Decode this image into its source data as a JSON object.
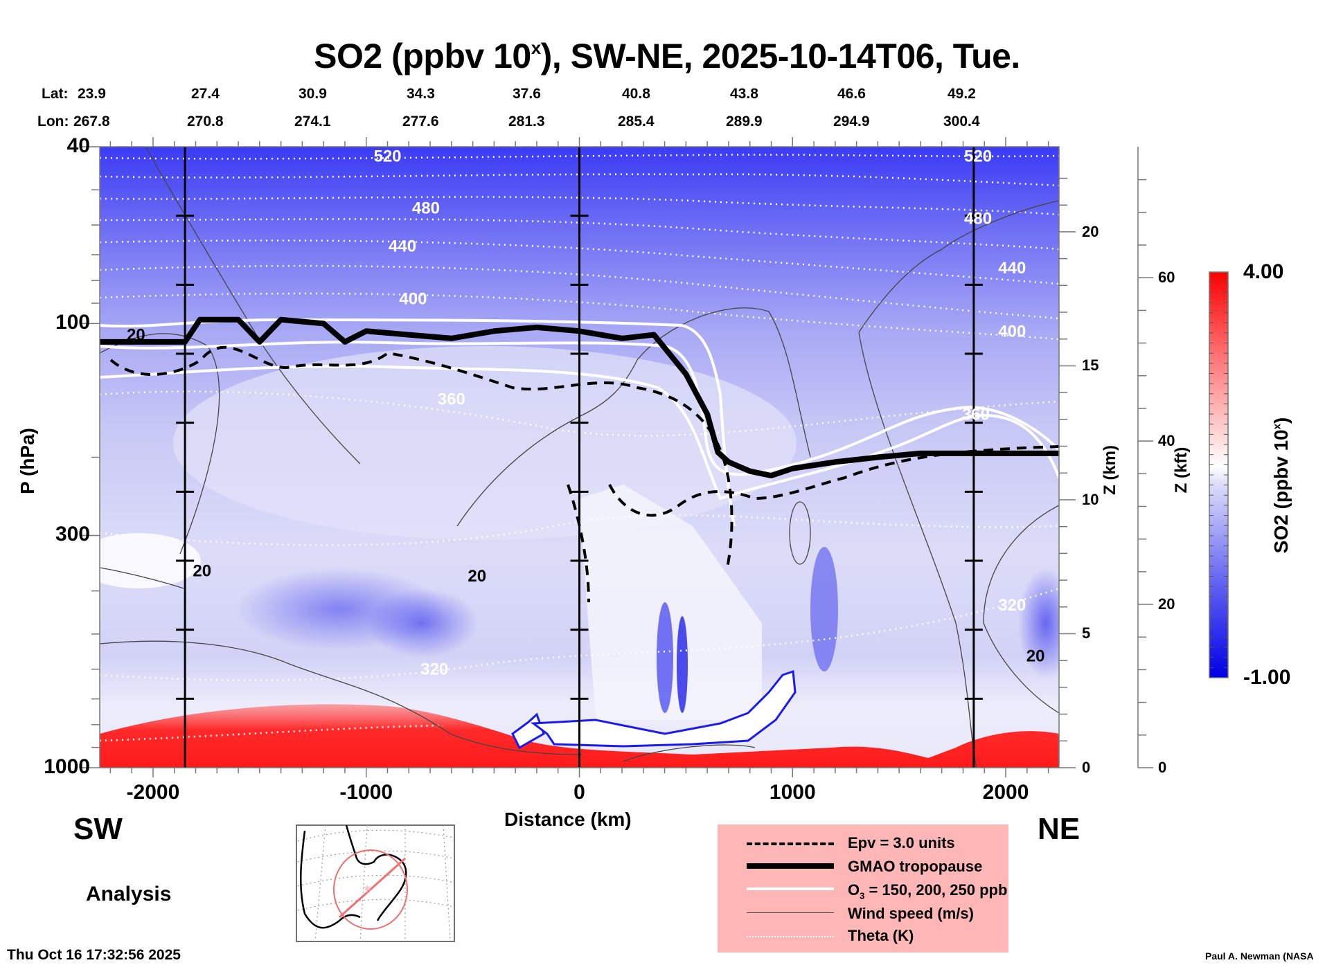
{
  "chart_data": {
    "type": "heatmap",
    "title_main": "SO2 (ppbv 10",
    "title_sup": "x",
    "title_rest": "), SW-NE, 2025-10-14T06, Tue.",
    "xlabel": "Distance (km)",
    "ylabel": "P (hPa)",
    "x_range": [
      -2250,
      2250
    ],
    "x_ticks": [
      -2000,
      -1000,
      0,
      1000,
      2000
    ],
    "y_scale": "log",
    "y_range_hpa": [
      1000,
      40
    ],
    "y_ticks": [
      40,
      100,
      300,
      1000
    ],
    "z_km_label": "Z (km)",
    "z_km_ticks": [
      0,
      5,
      10,
      15,
      20
    ],
    "z_kft_label": "Z (kft)",
    "z_kft_ticks": [
      0,
      20,
      40,
      60
    ],
    "lat_label": "Lat:",
    "lon_label": "Lon:",
    "lat": [
      "23.9",
      "27.4",
      "30.9",
      "34.3",
      "37.6",
      "40.8",
      "43.8",
      "46.6",
      "49.2"
    ],
    "lon": [
      "267.8",
      "270.8",
      "274.1",
      "277.6",
      "281.3",
      "285.4",
      "289.9",
      "294.9",
      "300.4"
    ],
    "vertical_marker_lines_km": [
      -1850,
      0,
      1850
    ],
    "colorbar": {
      "label_main": "SO2 (ppbv 10",
      "label_sup": "x",
      "label_rest": ")",
      "min": -1.0,
      "max": 4.0,
      "min_label": "-1.00",
      "max_label": "4.00",
      "colors": [
        "#0000e6",
        "#ffffff",
        "#ff0000"
      ]
    },
    "theta_contour_labels": [
      {
        "value": "520",
        "x": -900,
        "p": 42
      },
      {
        "value": "480",
        "x": -720,
        "p": 55
      },
      {
        "value": "440",
        "x": -830,
        "p": 67
      },
      {
        "value": "400",
        "x": -780,
        "p": 88
      },
      {
        "value": "360",
        "x": -600,
        "p": 148
      },
      {
        "value": "320",
        "x": -680,
        "p": 600
      },
      {
        "value": "520",
        "x": 1870,
        "p": 42
      },
      {
        "value": "480",
        "x": 1870,
        "p": 58
      },
      {
        "value": "440",
        "x": 2030,
        "p": 75
      },
      {
        "value": "400",
        "x": 2030,
        "p": 104
      },
      {
        "value": "360",
        "x": 1860,
        "p": 160
      },
      {
        "value": "320",
        "x": 2030,
        "p": 430
      }
    ],
    "wind_contour_labels": [
      {
        "value": "20",
        "x": -2080,
        "p": 106
      },
      {
        "value": "20",
        "x": -1770,
        "p": 360
      },
      {
        "value": "20",
        "x": -480,
        "p": 370
      },
      {
        "value": "20",
        "x": 2140,
        "p": 560
      }
    ],
    "legend": [
      {
        "style": "dashed",
        "label": "Epv = 3.0 units"
      },
      {
        "style": "thick",
        "label": "GMAO tropopause"
      },
      {
        "style": "white",
        "label_pre": "O",
        "label_sub": "3",
        "label": " = 150, 200, 250 ppb"
      },
      {
        "style": "thin",
        "label": "Wind speed (m/s)"
      },
      {
        "style": "dotted",
        "label": "Theta (K)"
      }
    ],
    "tropopause_km_path": [
      [
        -2250,
        110
      ],
      [
        -1850,
        110
      ],
      [
        -1780,
        98
      ],
      [
        -1600,
        98
      ],
      [
        -1500,
        110
      ],
      [
        -1400,
        98
      ],
      [
        -1200,
        100
      ],
      [
        -1100,
        110
      ],
      [
        -1000,
        104
      ],
      [
        -800,
        106
      ],
      [
        -600,
        108
      ],
      [
        -400,
        104
      ],
      [
        -200,
        102
      ],
      [
        0,
        104
      ],
      [
        200,
        108
      ],
      [
        350,
        106
      ],
      [
        500,
        130
      ],
      [
        600,
        160
      ],
      [
        650,
        195
      ],
      [
        700,
        205
      ],
      [
        800,
        215
      ],
      [
        900,
        220
      ],
      [
        1000,
        212
      ],
      [
        1200,
        205
      ],
      [
        1400,
        200
      ],
      [
        1600,
        196
      ],
      [
        2250,
        196
      ]
    ]
  },
  "labels": {
    "sw": "SW",
    "ne": "NE",
    "analysis": "Analysis",
    "timestamp": "Thu Oct 16 17:32:56 2025",
    "credit": "Paul A. Newman (NASA"
  }
}
